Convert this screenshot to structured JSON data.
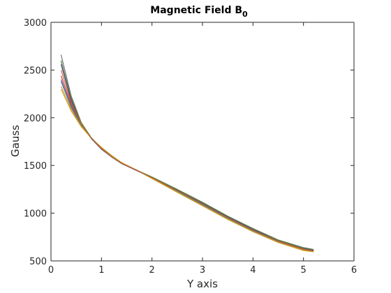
{
  "chart_data": {
    "type": "line",
    "title": "Magnetic Field B",
    "title_subscript": "0",
    "xlabel": "Y axis",
    "ylabel": "Gauss",
    "xlim": [
      0,
      6
    ],
    "ylim": [
      500,
      3000
    ],
    "x_ticks": [
      "0",
      "1",
      "2",
      "3",
      "4",
      "5",
      "6"
    ],
    "y_ticks": [
      "500",
      "1000",
      "1500",
      "2000",
      "2500",
      "3000"
    ],
    "grid": false,
    "legend": "none",
    "x": [
      0.2,
      0.4,
      0.6,
      0.8,
      1.0,
      1.2,
      1.4,
      1.7,
      2.0,
      2.5,
      3.0,
      3.5,
      4.0,
      4.5,
      5.0,
      5.2
    ],
    "series": [
      {
        "color": "#6d6d6d",
        "values": [
          2660,
          2230,
          1950,
          1790,
          1670,
          1590,
          1520,
          1450,
          1380,
          1250,
          1115,
          970,
          840,
          720,
          640,
          620
        ]
      },
      {
        "color": "#3a5fa0",
        "values": [
          2600,
          2200,
          1940,
          1790,
          1680,
          1590,
          1520,
          1450,
          1375,
          1245,
          1110,
          965,
          835,
          715,
          630,
          615
        ]
      },
      {
        "color": "#4a3a8a",
        "values": [
          2560,
          2180,
          1935,
          1780,
          1670,
          1590,
          1520,
          1445,
          1372,
          1242,
          1105,
          960,
          830,
          710,
          625,
          610
        ]
      },
      {
        "color": "#b23a3a",
        "values": [
          2440,
          2140,
          1925,
          1785,
          1680,
          1595,
          1525,
          1450,
          1370,
          1235,
          1095,
          950,
          820,
          705,
          620,
          605
        ]
      },
      {
        "color": "#8a4a9a",
        "values": [
          2400,
          2120,
          1920,
          1785,
          1680,
          1595,
          1525,
          1448,
          1368,
          1232,
          1092,
          948,
          818,
          702,
          618,
          602
        ]
      },
      {
        "color": "#2f8a8a",
        "values": [
          2380,
          2110,
          1915,
          1785,
          1685,
          1600,
          1528,
          1450,
          1366,
          1228,
          1088,
          944,
          814,
          700,
          615,
          600
        ]
      },
      {
        "color": "#e08a2a",
        "values": [
          2330,
          2090,
          1910,
          1785,
          1690,
          1605,
          1530,
          1452,
          1364,
          1222,
          1080,
          938,
          808,
          695,
          612,
          597
        ]
      },
      {
        "color": "#c9a227",
        "values": [
          2300,
          2070,
          1905,
          1785,
          1690,
          1605,
          1530,
          1450,
          1362,
          1218,
          1076,
          934,
          805,
          692,
          608,
          594
        ]
      },
      {
        "color": "#5a8a3a",
        "values": [
          2600,
          2210,
          1945,
          1790,
          1675,
          1592,
          1522,
          1450,
          1378,
          1248,
          1112,
          968,
          838,
          718,
          634,
          618
        ]
      },
      {
        "color": "#d0602a",
        "values": [
          2500,
          2160,
          1930,
          1785,
          1678,
          1594,
          1524,
          1448,
          1370,
          1236,
          1098,
          952,
          822,
          706,
          622,
          604
        ]
      }
    ]
  }
}
